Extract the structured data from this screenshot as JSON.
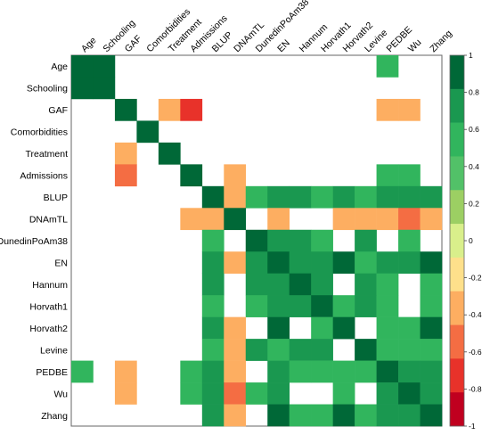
{
  "chart_data": {
    "type": "heatmap",
    "title": "",
    "xlabel": "",
    "ylabel": "",
    "variables": [
      "Age",
      "Schooling",
      "GAF",
      "Comorbidities",
      "Treatment",
      "Admissions",
      "BLUP",
      "DNAmTL",
      "DunedinPoAm38",
      "EN",
      "Hannum",
      "Horvath1",
      "Horvath2",
      "Levine",
      "PEDBE",
      "Wu",
      "Zhang"
    ],
    "matrix": [
      [
        0.85,
        0.85,
        null,
        null,
        null,
        null,
        null,
        null,
        null,
        null,
        null,
        null,
        null,
        null,
        0.5,
        null,
        null
      ],
      [
        0.85,
        0.85,
        null,
        null,
        null,
        null,
        null,
        null,
        null,
        null,
        null,
        null,
        null,
        null,
        null,
        null,
        null
      ],
      [
        null,
        null,
        0.85,
        null,
        -0.45,
        -0.65,
        null,
        null,
        null,
        null,
        null,
        null,
        null,
        null,
        -0.45,
        -0.45,
        null
      ],
      [
        null,
        null,
        null,
        0.85,
        null,
        null,
        null,
        null,
        null,
        null,
        null,
        null,
        null,
        null,
        null,
        null,
        null
      ],
      [
        null,
        null,
        -0.45,
        null,
        0.85,
        null,
        null,
        null,
        null,
        null,
        null,
        null,
        null,
        null,
        null,
        null,
        null
      ],
      [
        null,
        null,
        -0.6,
        null,
        null,
        0.85,
        null,
        -0.45,
        null,
        null,
        null,
        null,
        null,
        null,
        0.5,
        0.5,
        null
      ],
      [
        null,
        null,
        null,
        null,
        null,
        null,
        0.85,
        -0.45,
        0.55,
        0.65,
        0.65,
        0.55,
        0.65,
        0.55,
        0.65,
        0.65,
        0.65
      ],
      [
        null,
        null,
        null,
        null,
        null,
        -0.45,
        -0.45,
        0.85,
        null,
        -0.45,
        null,
        null,
        -0.45,
        -0.45,
        -0.45,
        -0.6,
        -0.45
      ],
      [
        null,
        null,
        null,
        null,
        null,
        null,
        0.55,
        null,
        0.85,
        0.65,
        0.65,
        0.55,
        null,
        0.65,
        null,
        0.55,
        null
      ],
      [
        null,
        null,
        null,
        null,
        null,
        null,
        0.65,
        -0.45,
        0.65,
        0.85,
        0.65,
        0.65,
        0.85,
        0.55,
        0.65,
        0.65,
        0.85
      ],
      [
        null,
        null,
        null,
        null,
        null,
        null,
        0.65,
        null,
        0.65,
        0.65,
        0.85,
        0.65,
        null,
        0.65,
        0.5,
        null,
        0.5
      ],
      [
        null,
        null,
        null,
        null,
        null,
        null,
        0.55,
        null,
        0.55,
        0.65,
        0.65,
        0.85,
        0.55,
        0.65,
        0.5,
        null,
        0.5
      ],
      [
        null,
        null,
        null,
        null,
        null,
        null,
        0.65,
        -0.45,
        null,
        0.85,
        null,
        0.55,
        0.85,
        null,
        0.5,
        0.5,
        0.85
      ],
      [
        null,
        null,
        null,
        null,
        null,
        null,
        0.55,
        -0.45,
        0.65,
        0.55,
        0.65,
        0.65,
        null,
        0.85,
        0.55,
        0.5,
        0.55
      ],
      [
        0.5,
        null,
        -0.45,
        null,
        null,
        0.5,
        0.65,
        -0.45,
        null,
        0.65,
        0.5,
        0.5,
        0.5,
        0.55,
        0.85,
        0.65,
        0.65
      ],
      [
        null,
        null,
        -0.45,
        null,
        null,
        0.5,
        0.65,
        -0.6,
        0.55,
        0.65,
        null,
        null,
        0.5,
        null,
        0.65,
        0.85,
        0.65
      ],
      [
        null,
        null,
        null,
        null,
        null,
        null,
        0.65,
        -0.45,
        null,
        0.85,
        0.5,
        0.5,
        0.85,
        0.55,
        0.65,
        0.65,
        0.85
      ]
    ],
    "colorbar": {
      "ticks": [
        "1",
        "0.8",
        "0.6",
        "0.4",
        "0.2",
        "0",
        "-0.2",
        "-0.4",
        "-0.6",
        "-0.8",
        "-1"
      ],
      "range": [
        -1,
        1
      ],
      "colors": [
        "#006837",
        "#1a9850",
        "#31b55d",
        "#52c168",
        "#9ccf63",
        "#d9ef8b",
        "#fee08b",
        "#fdae61",
        "#f46d43",
        "#e8322a",
        "#c0001f"
      ]
    },
    "grid": false
  }
}
